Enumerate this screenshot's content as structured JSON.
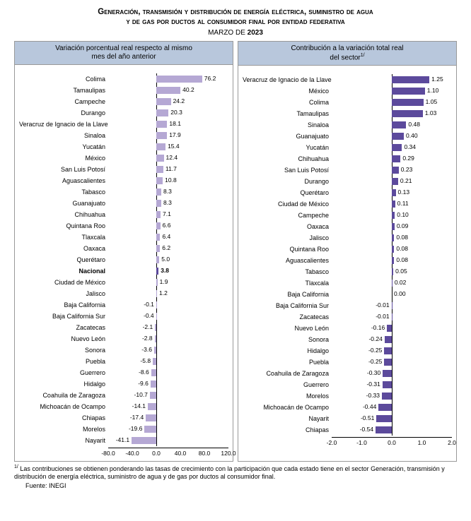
{
  "title_line1": "Generación, transmisión y distribución de energía eléctrica, suministro de agua",
  "title_line2": "y de gas por ductos al consumidor final por entidad federativa",
  "date_prefix": "MARZO DE ",
  "date_year": "2023",
  "left_panel": {
    "header_line1": "Variación porcentual real respecto al mismo",
    "header_line2": "mes del año anterior",
    "type": "bar-horizontal",
    "bar_color": "#b5a8d4",
    "nacional_color": "#5c4a9c",
    "xlim": [
      -80,
      120
    ],
    "xticks": [
      -80.0,
      -40.0,
      0.0,
      40.0,
      80.0,
      120.0
    ],
    "rows": [
      {
        "label": "Colima",
        "value": 76.2
      },
      {
        "label": "Tamaulipas",
        "value": 40.2
      },
      {
        "label": "Campeche",
        "value": 24.2
      },
      {
        "label": "Durango",
        "value": 20.3
      },
      {
        "label": "Veracruz de Ignacio de la Llave",
        "value": 18.1
      },
      {
        "label": "Sinaloa",
        "value": 17.9
      },
      {
        "label": "Yucatán",
        "value": 15.4
      },
      {
        "label": "México",
        "value": 12.4
      },
      {
        "label": "San Luis Potosí",
        "value": 11.7
      },
      {
        "label": "Aguascalientes",
        "value": 10.8
      },
      {
        "label": "Tabasco",
        "value": 8.3
      },
      {
        "label": "Guanajuato",
        "value": 8.3
      },
      {
        "label": "Chihuahua",
        "value": 7.1
      },
      {
        "label": "Quintana Roo",
        "value": 6.6
      },
      {
        "label": "Tlaxcala",
        "value": 6.4
      },
      {
        "label": "Oaxaca",
        "value": 6.2
      },
      {
        "label": "Querétaro",
        "value": 5.0
      },
      {
        "label": "Nacional",
        "value": 3.8,
        "highlight": true
      },
      {
        "label": "Ciudad de México",
        "value": 1.9
      },
      {
        "label": "Jalisco",
        "value": 1.2
      },
      {
        "label": "Baja California",
        "value": -0.1
      },
      {
        "label": "Baja California Sur",
        "value": -0.4
      },
      {
        "label": "Zacatecas",
        "value": -2.1
      },
      {
        "label": "Nuevo León",
        "value": -2.8
      },
      {
        "label": "Sonora",
        "value": -3.6
      },
      {
        "label": "Puebla",
        "value": -5.8
      },
      {
        "label": "Guerrero",
        "value": -8.6
      },
      {
        "label": "Hidalgo",
        "value": -9.6
      },
      {
        "label": "Coahuila de Zaragoza",
        "value": -10.7
      },
      {
        "label": "Michoacán de Ocampo",
        "value": -14.1
      },
      {
        "label": "Chiapas",
        "value": -17.4
      },
      {
        "label": "Morelos",
        "value": -19.6
      },
      {
        "label": "Nayarit",
        "value": -41.1
      }
    ]
  },
  "right_panel": {
    "header_line1": "Contribución a la variación total real",
    "header_line2": "del sector",
    "header_sup": "1/",
    "type": "bar-horizontal",
    "bar_color": "#5c4a9c",
    "xlim": [
      -2.0,
      2.0
    ],
    "xticks": [
      -2.0,
      -1.0,
      0.0,
      1.0,
      2.0
    ],
    "rows": [
      {
        "label": "Veracruz de Ignacio de la Llave",
        "value": 1.25
      },
      {
        "label": "México",
        "value": 1.1
      },
      {
        "label": "Colima",
        "value": 1.05
      },
      {
        "label": "Tamaulipas",
        "value": 1.03
      },
      {
        "label": "Sinaloa",
        "value": 0.48
      },
      {
        "label": "Guanajuato",
        "value": 0.4
      },
      {
        "label": "Yucatán",
        "value": 0.34
      },
      {
        "label": "Chihuahua",
        "value": 0.29
      },
      {
        "label": "San Luis Potosí",
        "value": 0.23
      },
      {
        "label": "Durango",
        "value": 0.21
      },
      {
        "label": "Querétaro",
        "value": 0.13
      },
      {
        "label": "Ciudad de México",
        "value": 0.11
      },
      {
        "label": "Campeche",
        "value": 0.1
      },
      {
        "label": "Oaxaca",
        "value": 0.09
      },
      {
        "label": "Jalisco",
        "value": 0.08
      },
      {
        "label": "Quintana Roo",
        "value": 0.08
      },
      {
        "label": "Aguascalientes",
        "value": 0.08
      },
      {
        "label": "Tabasco",
        "value": 0.05
      },
      {
        "label": "Tlaxcala",
        "value": 0.02
      },
      {
        "label": "Baja California",
        "value": 0.0
      },
      {
        "label": "Baja California Sur",
        "value": -0.01
      },
      {
        "label": "Zacatecas",
        "value": -0.01
      },
      {
        "label": "Nuevo León",
        "value": -0.16
      },
      {
        "label": "Sonora",
        "value": -0.24
      },
      {
        "label": "Hidalgo",
        "value": -0.25
      },
      {
        "label": "Puebla",
        "value": -0.25
      },
      {
        "label": "Coahuila de Zaragoza",
        "value": -0.3
      },
      {
        "label": "Guerrero",
        "value": -0.31
      },
      {
        "label": "Morelos",
        "value": -0.33
      },
      {
        "label": "Michoacán de Ocampo",
        "value": -0.44
      },
      {
        "label": "Nayarit",
        "value": -0.51
      },
      {
        "label": "Chiapas",
        "value": -0.54
      }
    ]
  },
  "footnote_sup": "1/",
  "footnote_text": " Las contribuciones se obtienen ponderando las tasas de crecimiento con la participación que cada estado tiene en el sector Generación, transmisión y distribución de energía eléctrica, suministro de agua y de gas por ductos al consumidor final.",
  "source_label": "Fuente: INEGI"
}
